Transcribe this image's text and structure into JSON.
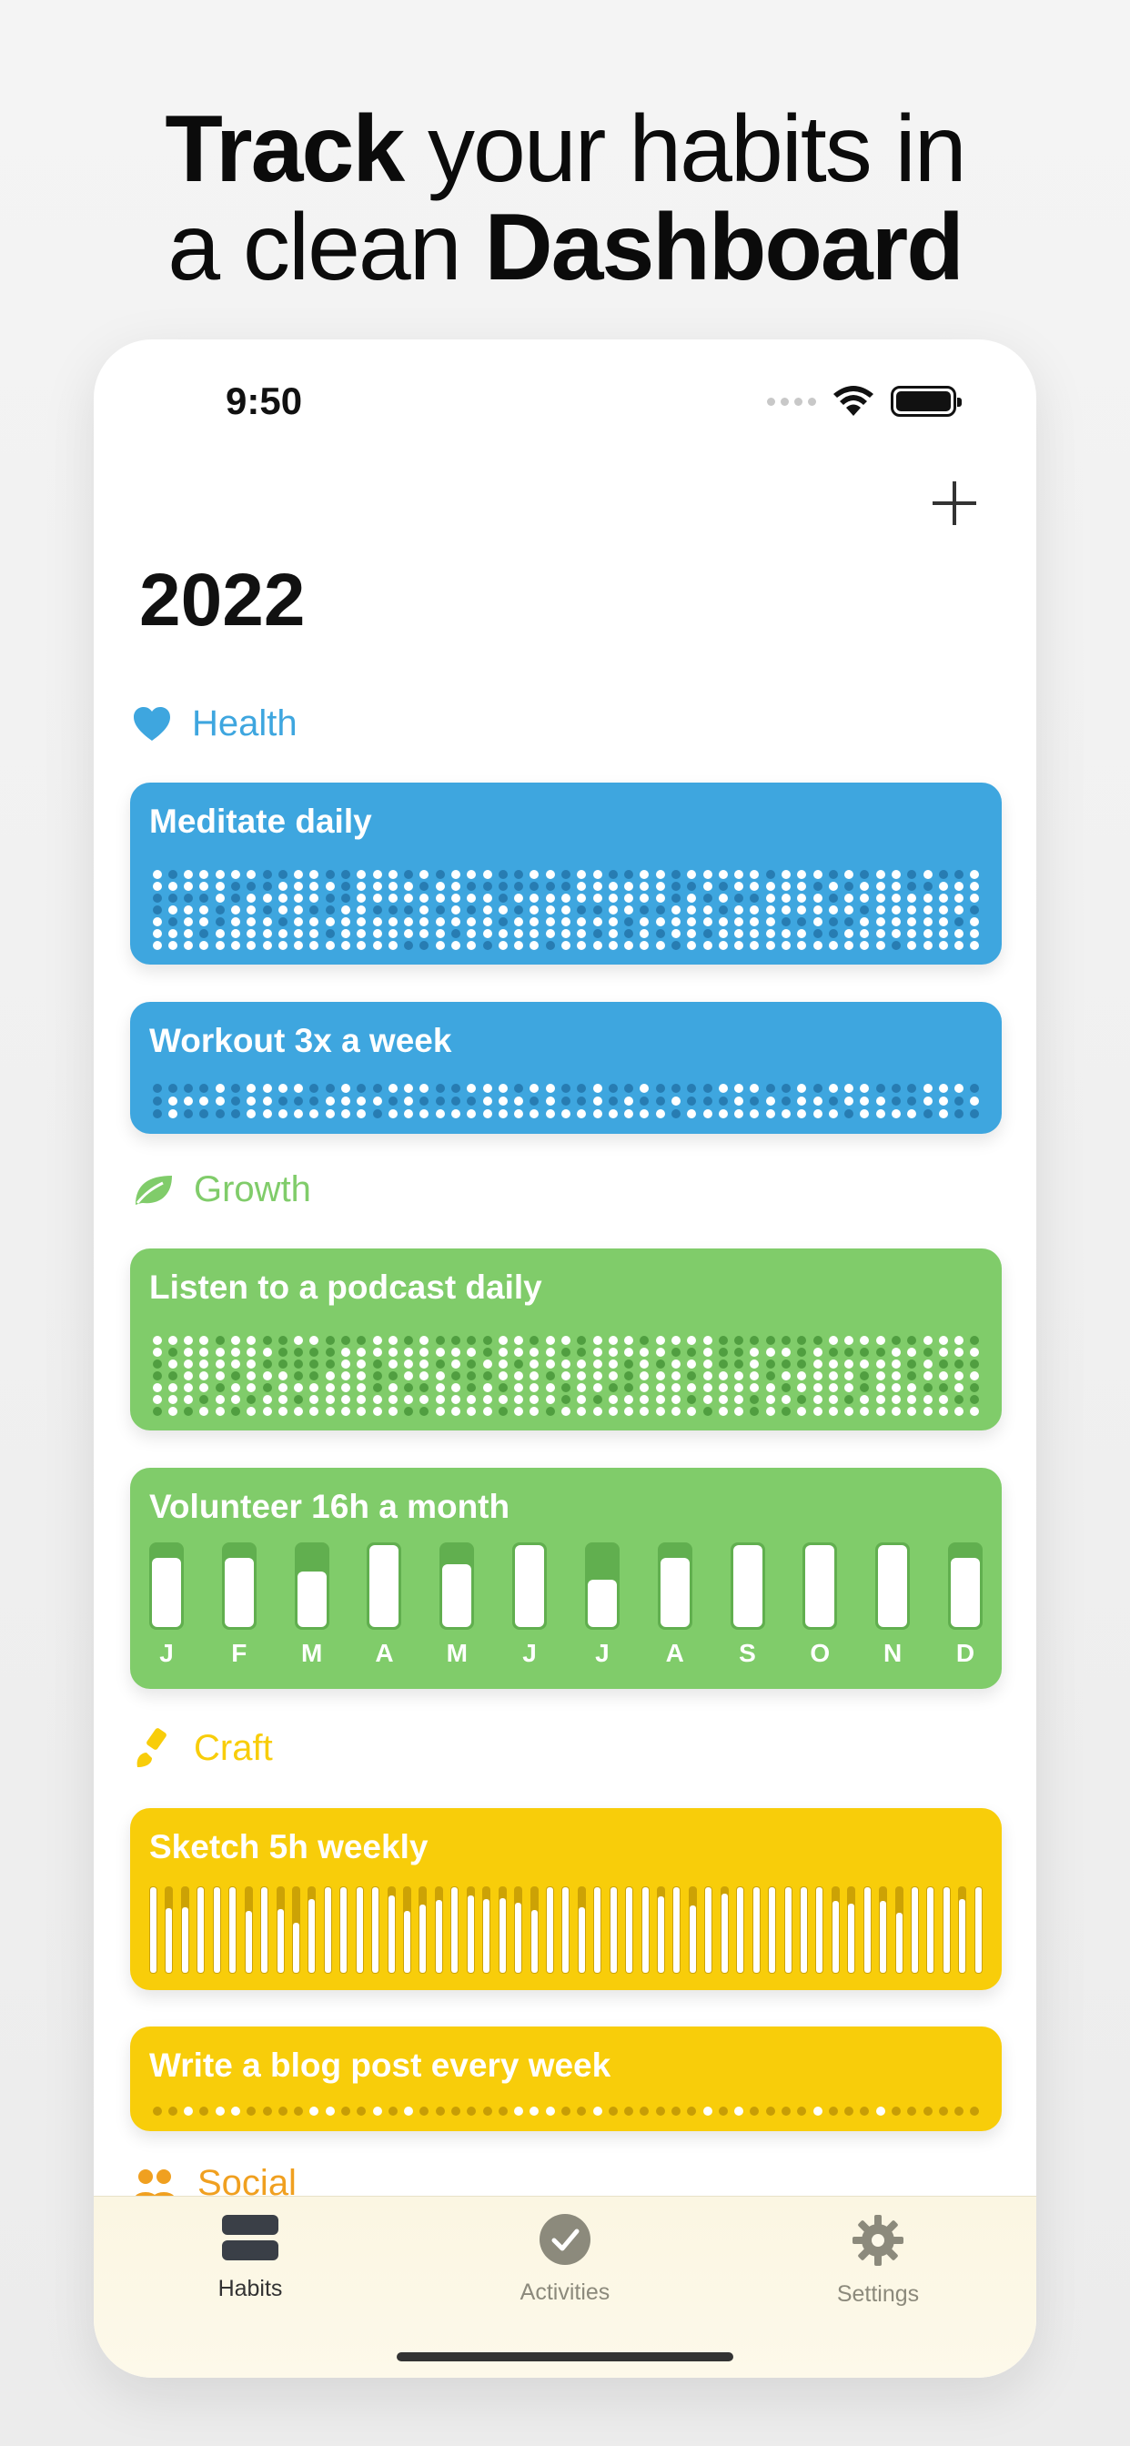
{
  "headline": {
    "line1_bold": "Track",
    "line1_rest": " your habits in",
    "line2_rest": "a clean ",
    "line2_bold": "Dashboard"
  },
  "status": {
    "time": "9:50"
  },
  "year": "2022",
  "sections": {
    "health": {
      "label": "Health",
      "color": "#3ea6df"
    },
    "growth": {
      "label": "Growth",
      "color": "#80cc6a"
    },
    "craft": {
      "label": "Craft",
      "color": "#f8cd0a"
    },
    "social": {
      "label": "Social",
      "color": "#f0a020"
    }
  },
  "habits": {
    "meditate": {
      "title": "Meditate daily"
    },
    "workout": {
      "title": "Workout 3x a week"
    },
    "podcast": {
      "title": "Listen to a podcast daily"
    },
    "volunteer": {
      "title": "Volunteer 16h a month",
      "months": [
        "J",
        "F",
        "M",
        "A",
        "M",
        "J",
        "J",
        "A",
        "S",
        "O",
        "N",
        "D"
      ],
      "progress": [
        0.85,
        0.85,
        0.7,
        1.0,
        0.78,
        1.0,
        0.6,
        0.85,
        1.0,
        1.0,
        1.0,
        0.85
      ]
    },
    "sketch": {
      "title": "Sketch 5h weekly"
    },
    "blog": {
      "title": "Write a blog post every week"
    }
  },
  "tabs": {
    "habits": "Habits",
    "activities": "Activities",
    "settings": "Settings"
  }
}
